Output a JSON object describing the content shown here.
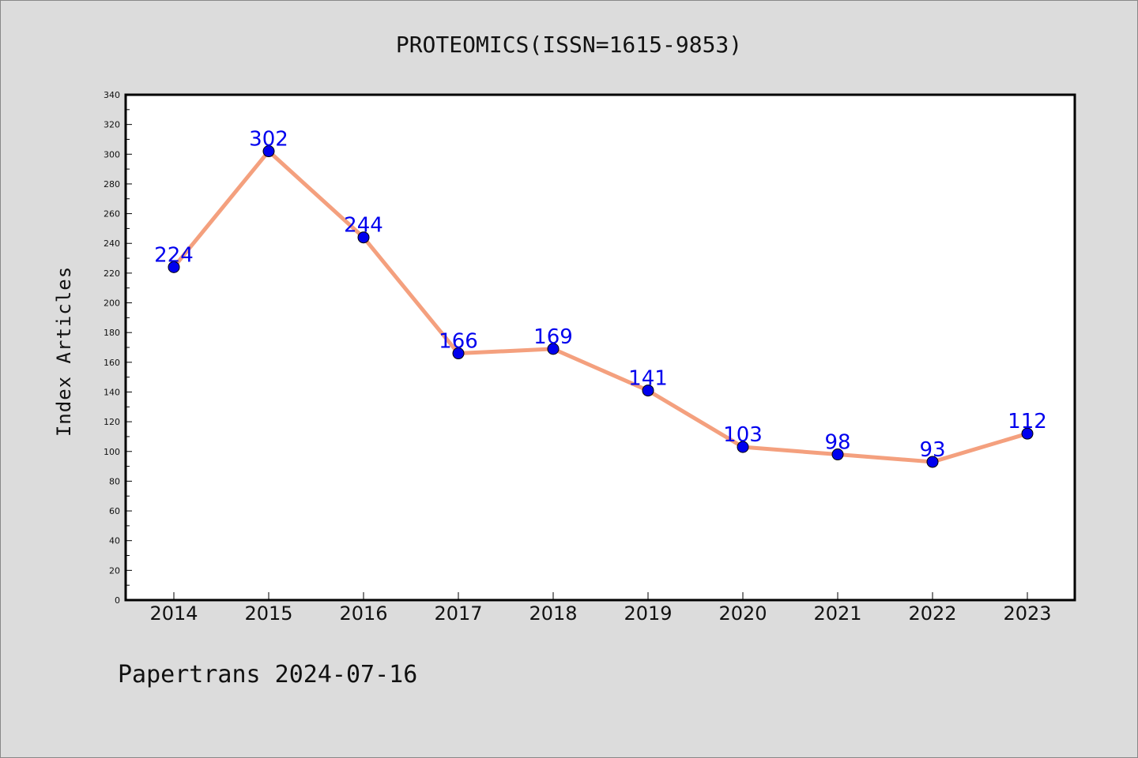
{
  "chart_data": {
    "type": "line",
    "title": "PROTEOMICS(ISSN=1615-9853)",
    "ylabel": "Index Articles",
    "xlabel": "",
    "categories": [
      "2014",
      "2015",
      "2016",
      "2017",
      "2018",
      "2019",
      "2020",
      "2021",
      "2022",
      "2023"
    ],
    "values": [
      224,
      302,
      244,
      166,
      169,
      141,
      103,
      98,
      93,
      112
    ],
    "ylim": [
      0,
      340
    ],
    "yticks": [
      0,
      20,
      40,
      60,
      80,
      100,
      120,
      140,
      160,
      180,
      200,
      220,
      240,
      260,
      280,
      300,
      320,
      340
    ],
    "grid": false,
    "line_color": "#f4a07e",
    "marker_color": "#0000ee",
    "label_color": "#0000ee"
  },
  "footer": "Papertrans 2024-07-16"
}
